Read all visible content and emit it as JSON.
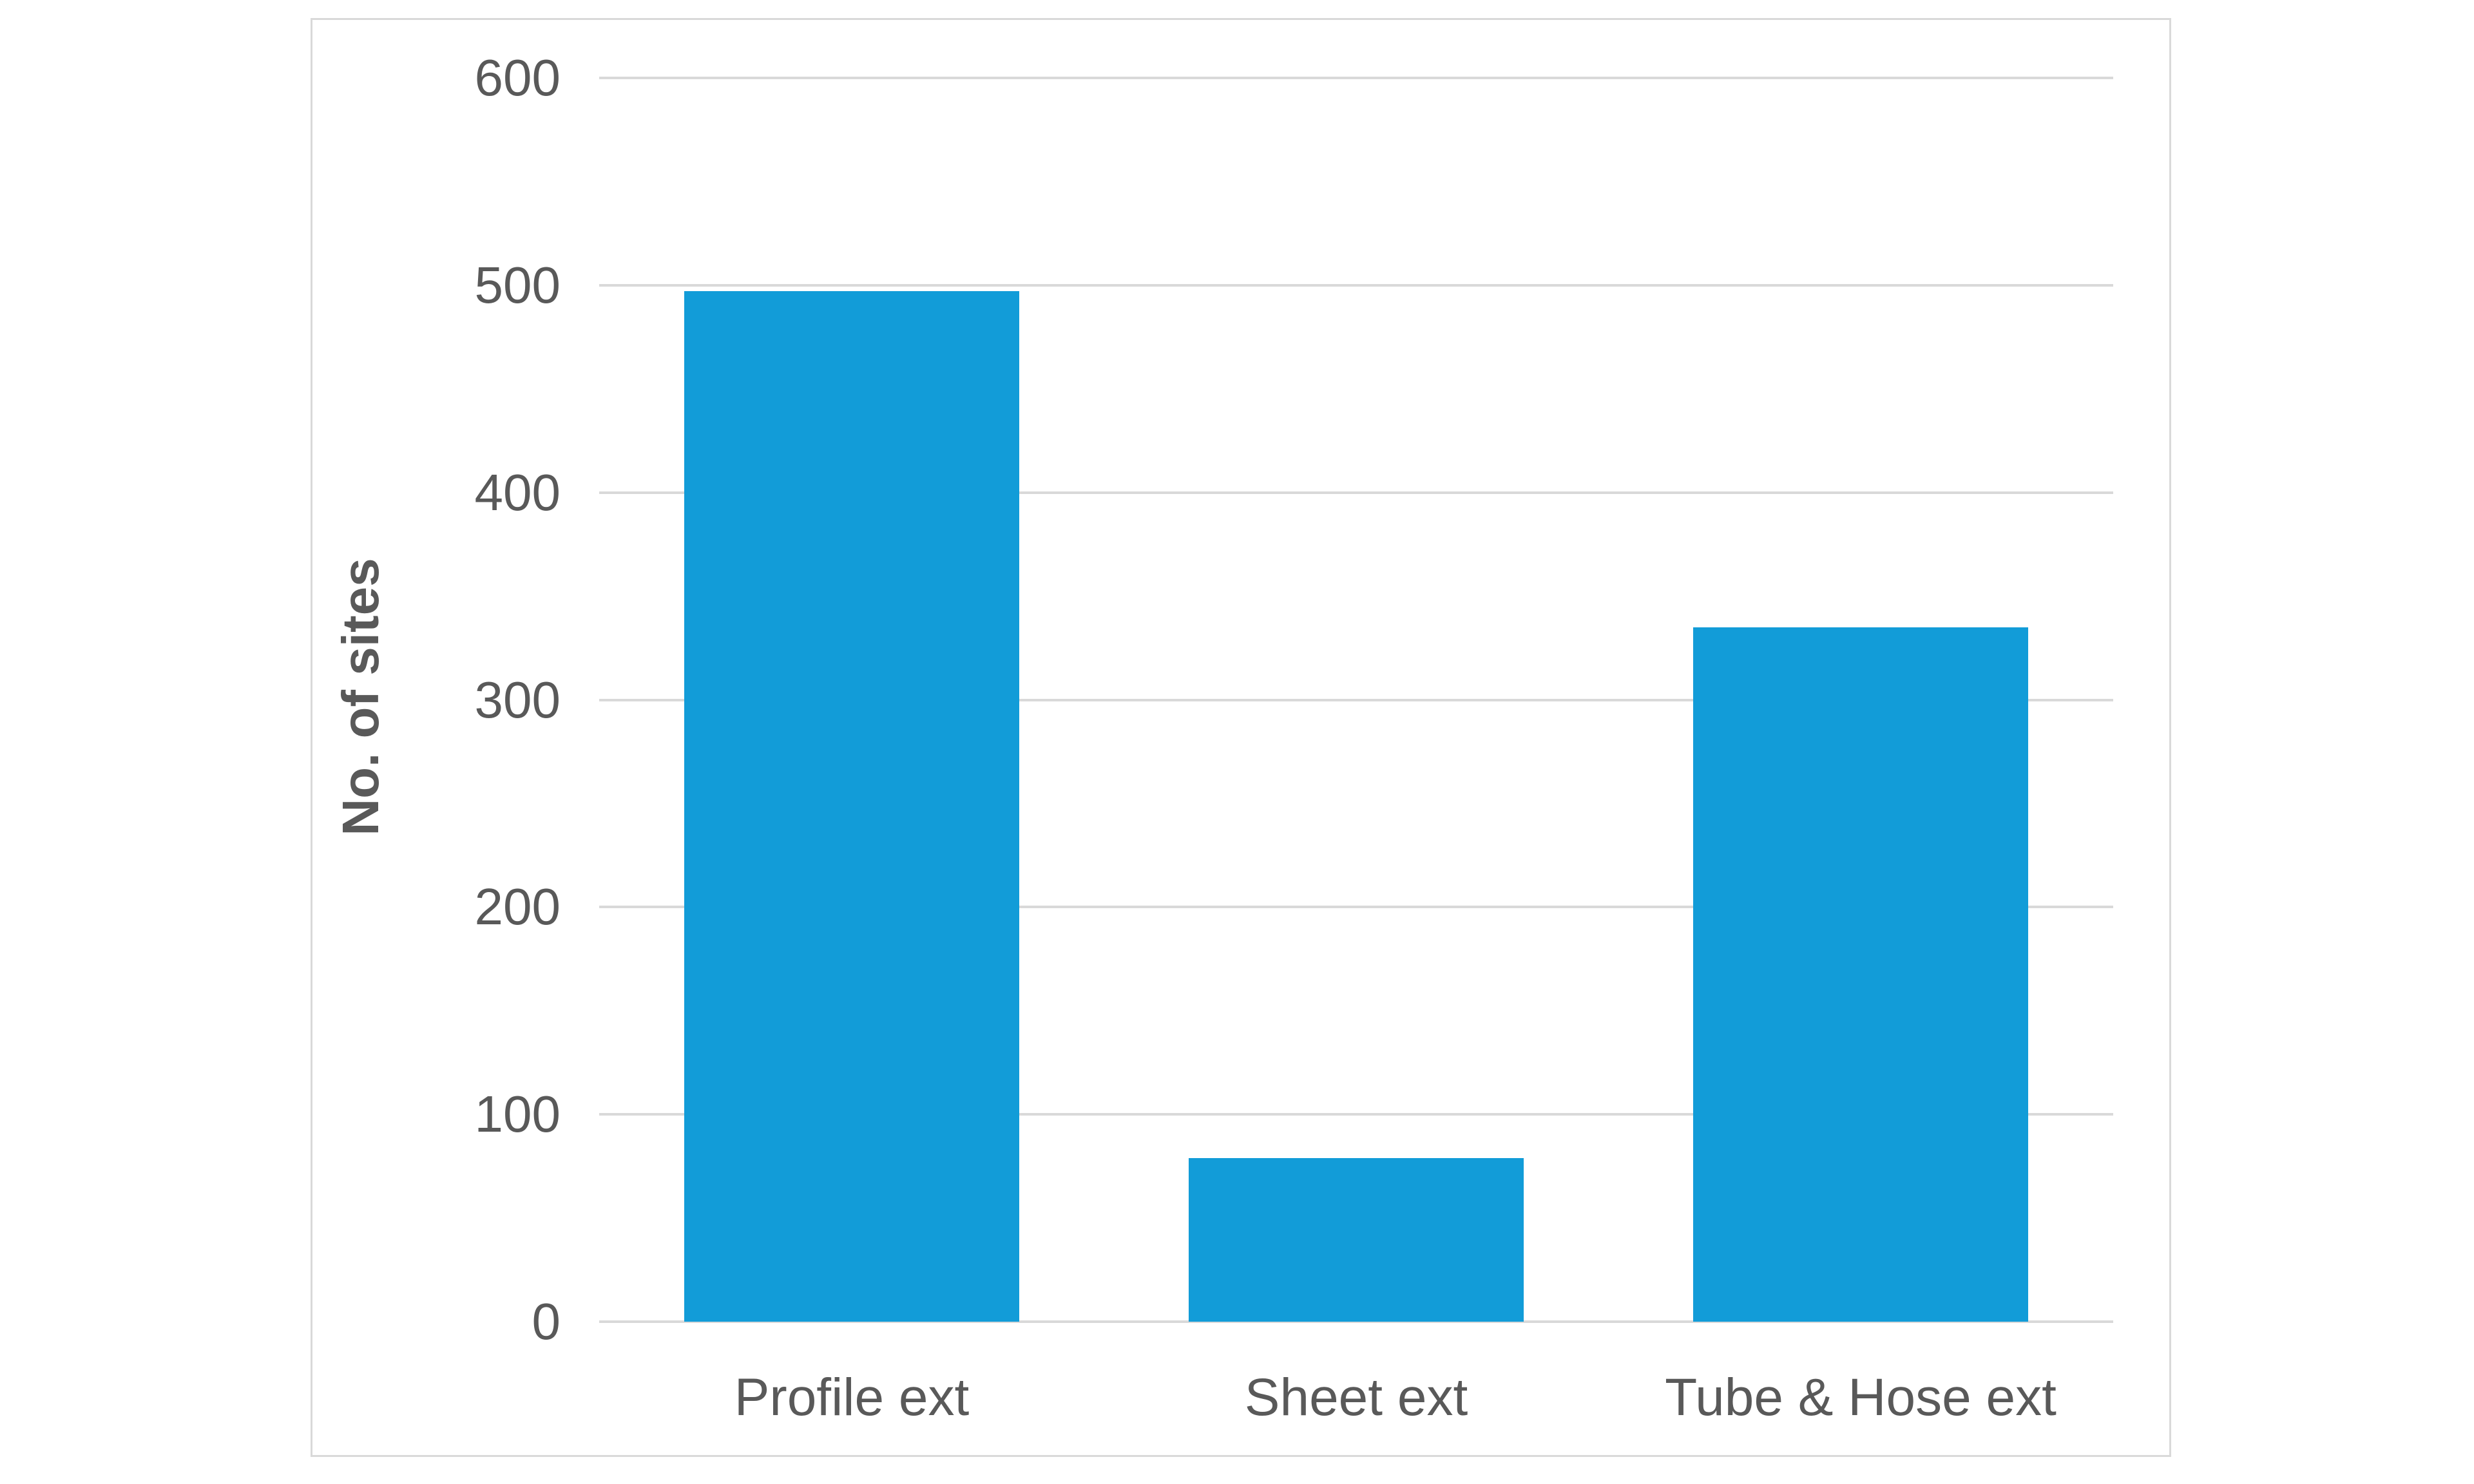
{
  "chart_data": {
    "type": "bar",
    "title": "",
    "categories": [
      "Profile ext",
      "Sheet ext",
      "Tube & Hose ext"
    ],
    "values": [
      497,
      79,
      335
    ],
    "xlabel": "",
    "ylabel": "No. of sites",
    "yticks": [
      600,
      500,
      400,
      300,
      200,
      100,
      0
    ],
    "ylim": [
      0,
      600
    ],
    "grid": "horizontal",
    "legend": "none",
    "bar_color": "#129cd8",
    "gridline_color": "#d9d9d9",
    "text_color": "#595959",
    "panel_border_color": "#d9d9d9",
    "background_color": "#ffffff"
  }
}
